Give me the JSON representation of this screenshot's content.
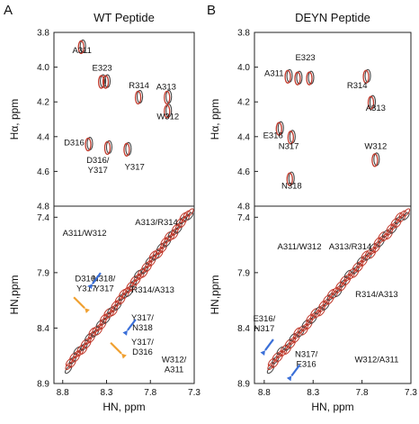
{
  "chart_data": [
    {
      "panel": "A",
      "title": "WT Peptide",
      "type": "scatter",
      "ylabel": "Hα, ppm",
      "ylim": [
        3.8,
        4.8
      ],
      "y_ticks": [
        "3.8",
        "4.0",
        "4.2",
        "4.4",
        "4.6",
        "4.8"
      ],
      "annotations": [
        {
          "text": "A311",
          "x": 8.58,
          "y": 3.92,
          "peaks": [
            {
              "x": 8.58,
              "y": 3.88
            }
          ]
        },
        {
          "text": "E323",
          "x": 8.35,
          "y": 4.02,
          "peaks": [
            {
              "x": 8.35,
              "y": 4.08
            },
            {
              "x": 8.3,
              "y": 4.08
            }
          ]
        },
        {
          "text": "R314",
          "x": 7.93,
          "y": 4.12,
          "peaks": [
            {
              "x": 7.93,
              "y": 4.17
            }
          ]
        },
        {
          "text": "A313",
          "x": 7.62,
          "y": 4.13,
          "peaks": [
            {
              "x": 7.6,
              "y": 4.17
            }
          ]
        },
        {
          "text": "W312",
          "x": 7.6,
          "y": 4.3,
          "peaks": [
            {
              "x": 7.6,
              "y": 4.25
            }
          ]
        },
        {
          "text": "D316",
          "x": 8.67,
          "y": 4.45,
          "peaks": [
            {
              "x": 8.5,
              "y": 4.44
            }
          ]
        },
        {
          "text": "D316/ Y317",
          "x": 8.4,
          "y": 4.55,
          "peaks": [
            {
              "x": 8.28,
              "y": 4.46
            }
          ]
        },
        {
          "text": "Y317",
          "x": 7.98,
          "y": 4.59,
          "peaks": [
            {
              "x": 8.06,
              "y": 4.47
            }
          ]
        }
      ]
    },
    {
      "panel": "A",
      "title": "",
      "type": "scatter",
      "xlabel": "HN, ppm",
      "ylabel": "HN,ppm",
      "xlim": [
        8.9,
        7.3
      ],
      "ylim": [
        7.3,
        8.9
      ],
      "x_ticks": [
        "8.8",
        "8.3",
        "7.8",
        "7.3"
      ],
      "y_ticks": [
        "7.4",
        "7.9",
        "8.4",
        "8.9"
      ],
      "annotations": [
        {
          "text": "A311/W312",
          "x": 8.55,
          "y": 7.57
        },
        {
          "text": "A313/R314",
          "x": 7.73,
          "y": 7.47
        },
        {
          "text": "D316/ Y317",
          "x": 8.53,
          "y": 7.98
        },
        {
          "text": "N318/ Y317",
          "x": 8.33,
          "y": 7.98
        },
        {
          "text": "R314/A313",
          "x": 7.77,
          "y": 8.08
        },
        {
          "text": "Y317/ N318",
          "x": 7.89,
          "y": 8.33
        },
        {
          "text": "Y317/ D316",
          "x": 7.89,
          "y": 8.55
        },
        {
          "text": "W312/ A311",
          "x": 7.53,
          "y": 8.71
        }
      ],
      "arrows": [
        {
          "color": "blue",
          "x": 8.46,
          "y": 8.0
        },
        {
          "color": "orange",
          "x": 8.55,
          "y": 8.22
        },
        {
          "color": "blue",
          "x": 8.06,
          "y": 8.42
        },
        {
          "color": "orange",
          "x": 8.13,
          "y": 8.63
        }
      ]
    },
    {
      "panel": "B",
      "title": "DEYN Peptide",
      "type": "scatter",
      "ylabel": "Hα, ppm",
      "ylim": [
        3.8,
        4.8
      ],
      "y_ticks": [
        "3.8",
        "4.0",
        "4.2",
        "4.4",
        "4.6",
        "4.8"
      ],
      "annotations": [
        {
          "text": "A311",
          "x": 8.7,
          "y": 4.05,
          "peaks": [
            {
              "x": 8.55,
              "y": 4.05
            }
          ]
        },
        {
          "text": "E323",
          "x": 8.38,
          "y": 3.96,
          "peaks": [
            {
              "x": 8.45,
              "y": 4.06
            },
            {
              "x": 8.33,
              "y": 4.06
            }
          ]
        },
        {
          "text": "R314",
          "x": 7.85,
          "y": 4.12,
          "peaks": [
            {
              "x": 7.75,
              "y": 4.05
            }
          ]
        },
        {
          "text": "A313",
          "x": 7.66,
          "y": 4.25,
          "peaks": [
            {
              "x": 7.7,
              "y": 4.2
            }
          ]
        },
        {
          "text": "E316",
          "x": 8.71,
          "y": 4.41,
          "peaks": [
            {
              "x": 8.64,
              "y": 4.35
            }
          ]
        },
        {
          "text": "N317",
          "x": 8.55,
          "y": 4.47,
          "peaks": [
            {
              "x": 8.52,
              "y": 4.4
            }
          ]
        },
        {
          "text": "W312",
          "x": 7.66,
          "y": 4.47,
          "peaks": [
            {
              "x": 7.66,
              "y": 4.53
            }
          ]
        },
        {
          "text": "N318",
          "x": 8.52,
          "y": 4.7,
          "peaks": [
            {
              "x": 8.53,
              "y": 4.64
            }
          ]
        }
      ]
    },
    {
      "panel": "B",
      "title": "",
      "type": "scatter",
      "xlabel": "HN, ppm",
      "ylabel": "HN,ppm",
      "xlim": [
        8.9,
        7.3
      ],
      "ylim": [
        7.3,
        8.9
      ],
      "x_ticks": [
        "8.8",
        "8.3",
        "7.8",
        "7.3"
      ],
      "y_ticks": [
        "7.4",
        "7.9",
        "8.4",
        "8.9"
      ],
      "annotations": [
        {
          "text": "A311/W312",
          "x": 8.44,
          "y": 7.69
        },
        {
          "text": "A313/R314",
          "x": 7.92,
          "y": 7.69
        },
        {
          "text": "R314/A313",
          "x": 7.65,
          "y": 8.12
        },
        {
          "text": "E316/ N317",
          "x": 8.8,
          "y": 8.34
        },
        {
          "text": "N317/ E316",
          "x": 8.37,
          "y": 8.66
        },
        {
          "text": "W312/A311",
          "x": 7.65,
          "y": 8.71
        }
      ],
      "arrows": [
        {
          "color": "blue",
          "x": 8.79,
          "y": 8.6
        },
        {
          "color": "blue",
          "x": 8.52,
          "y": 8.83
        }
      ]
    }
  ],
  "panel_letters": [
    "A",
    "B"
  ],
  "colors": {
    "wt_trace": "#c0392b",
    "ref_trace": "#444444",
    "blue_arrow": "#3a6fd8",
    "orange_arrow": "#f0a030"
  }
}
